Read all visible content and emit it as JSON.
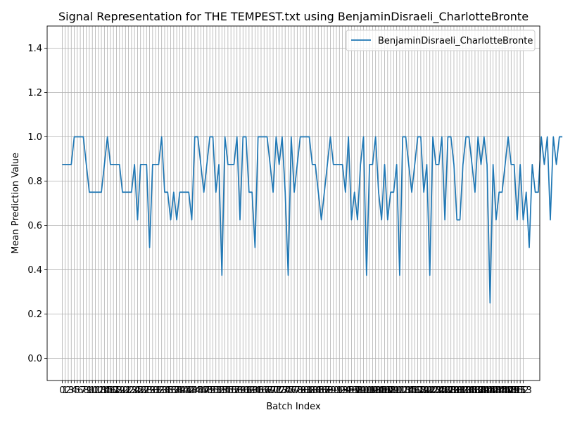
{
  "chart_data": {
    "type": "line",
    "title": "Signal Representation for THE TEMPEST.txt using BenjaminDisraeli_CharlotteBronte",
    "xlabel": "Batch Index",
    "ylabel": "Mean Prediction Value",
    "xlim": [
      -5,
      158.5
    ],
    "ylim": [
      -0.1,
      1.5
    ],
    "yticks": [
      0.0,
      0.2,
      0.4,
      0.6,
      0.8,
      1.0,
      1.2,
      1.4
    ],
    "ytick_labels": [
      "0.0",
      "0.2",
      "0.4",
      "0.6",
      "0.8",
      "1.0",
      "1.2",
      "1.4"
    ],
    "xtick_count": 154,
    "grid": true,
    "legend_position": "upper right",
    "line_color": "#1f77b4",
    "series": [
      {
        "name": "BenjaminDisraeli_CharlotteBronte",
        "values": [
          0.875,
          0.875,
          0.875,
          0.875,
          1.0,
          1.0,
          1.0,
          1.0,
          0.875,
          0.75,
          0.75,
          0.75,
          0.75,
          0.75,
          0.875,
          1.0,
          0.875,
          0.875,
          0.875,
          0.875,
          0.75,
          0.75,
          0.75,
          0.75,
          0.875,
          0.625,
          0.875,
          0.875,
          0.875,
          0.5,
          0.875,
          0.875,
          0.875,
          1.0,
          0.75,
          0.75,
          0.625,
          0.75,
          0.625,
          0.75,
          0.75,
          0.75,
          0.75,
          0.625,
          1.0,
          1.0,
          0.875,
          0.75,
          0.875,
          1.0,
          1.0,
          0.75,
          0.875,
          0.375,
          1.0,
          0.875,
          0.875,
          0.875,
          1.0,
          0.625,
          1.0,
          1.0,
          0.75,
          0.75,
          0.5,
          1.0,
          1.0,
          1.0,
          1.0,
          0.875,
          0.75,
          1.0,
          0.875,
          1.0,
          0.75,
          0.375,
          1.0,
          0.75,
          0.875,
          1.0,
          1.0,
          1.0,
          1.0,
          0.875,
          0.875,
          0.75,
          0.625,
          0.75,
          0.875,
          1.0,
          0.875,
          0.875,
          0.875,
          0.875,
          0.75,
          1.0,
          0.625,
          0.75,
          0.625,
          0.875,
          1.0,
          0.375,
          0.875,
          0.875,
          1.0,
          0.75,
          0.625,
          0.875,
          0.625,
          0.75,
          0.75,
          0.875,
          0.375,
          1.0,
          1.0,
          0.875,
          0.75,
          0.875,
          1.0,
          1.0,
          0.75,
          0.875,
          0.375,
          1.0,
          0.875,
          0.875,
          1.0,
          0.625,
          1.0,
          1.0,
          0.875,
          0.625,
          0.625,
          0.875,
          1.0,
          1.0,
          0.875,
          0.75,
          1.0,
          0.875,
          1.0,
          0.875,
          0.25,
          0.875,
          0.625,
          0.75,
          0.75,
          0.875,
          1.0,
          0.875,
          0.875,
          0.625,
          0.875,
          0.625,
          0.75,
          0.5,
          0.875,
          0.75,
          0.75,
          1.0,
          0.875,
          1.0,
          0.625,
          1.0,
          0.875,
          1.0,
          1.0
        ]
      }
    ]
  }
}
